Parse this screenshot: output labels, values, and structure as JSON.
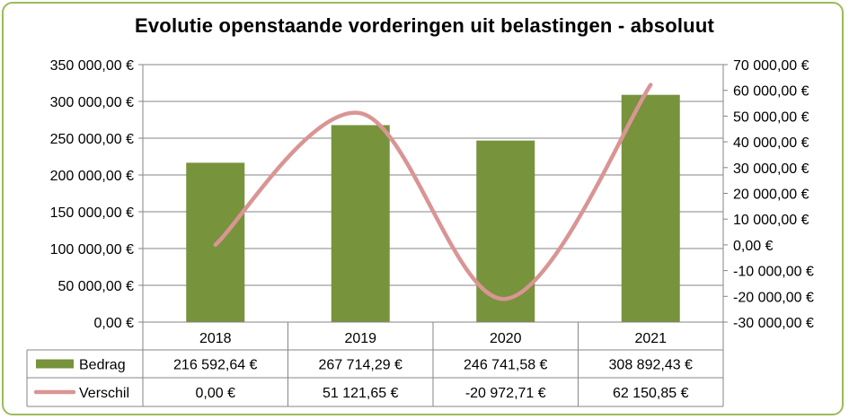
{
  "chart_data": {
    "type": "bar",
    "title": "Evolutie openstaande vorderingen uit belastingen - absoluut",
    "categories": [
      "2018",
      "2019",
      "2020",
      "2021"
    ],
    "series": [
      {
        "name": "Bedrag",
        "type": "bar",
        "axis": "left",
        "color": "#77933c",
        "values": [
          216592.64,
          267714.29,
          246741.58,
          308892.43
        ],
        "labels": [
          "216 592,64 €",
          "267 714,29 €",
          "246 741,58 €",
          "308 892,43 €"
        ]
      },
      {
        "name": "Verschil",
        "type": "line",
        "axis": "right",
        "color": "#d99594",
        "values": [
          0.0,
          51121.65,
          -20972.71,
          62150.85
        ],
        "labels": [
          "0,00 €",
          "51 121,65 €",
          "-20 972,71 €",
          "62 150,85 €"
        ]
      }
    ],
    "y_left": {
      "ylim": [
        0,
        350000
      ],
      "ticks": [
        "0,00 €",
        "50 000,00 €",
        "100 000,00 €",
        "150 000,00 €",
        "200 000,00 €",
        "250 000,00 €",
        "300 000,00 €",
        "350 000,00 €"
      ]
    },
    "y_right": {
      "ylim": [
        -30000,
        70000
      ],
      "ticks": [
        "-30 000,00 €",
        "-20 000,00 €",
        "-10 000,00 €",
        "0,00 €",
        "10 000,00 €",
        "20 000,00 €",
        "30 000,00 €",
        "40 000,00 €",
        "50 000,00 €",
        "60 000,00 €",
        "70 000,00 €"
      ]
    },
    "grid": true,
    "legend": "data-table"
  }
}
